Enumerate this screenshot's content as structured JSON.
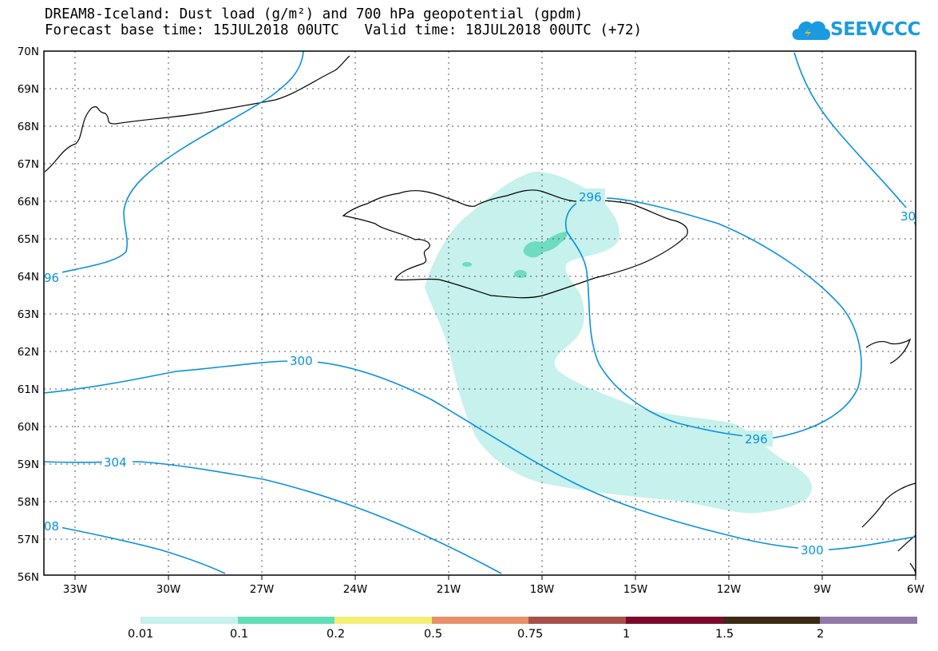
{
  "header": {
    "title_line1": "DREAM8-Iceland: Dust load (g/m²) and 700 hPa geopotential (gpdm)",
    "title_line2": "Forecast base time: 15JUL2018 00UTC   Valid time: 18JUL2018 00UTC (+72)"
  },
  "logo": {
    "text": "SEEVCCC",
    "icon": "cloud-icon",
    "color": "#1a9ae0"
  },
  "map": {
    "lon_ticks": [
      "33W",
      "30W",
      "27W",
      "24W",
      "21W",
      "18W",
      "15W",
      "12W",
      "9W",
      "6W"
    ],
    "lat_ticks": [
      "70N",
      "69N",
      "68N",
      "67N",
      "66N",
      "65N",
      "64N",
      "63N",
      "62N",
      "61N",
      "60N",
      "59N",
      "58N",
      "57N",
      "56N"
    ],
    "contour_color": "#0a90e0",
    "contour_labels": [
      "296",
      "96",
      "300",
      "304",
      "296",
      "300",
      "08",
      "30"
    ],
    "dust_colors": {
      "light": "#c6f1ec",
      "medium": "#6ddcc0"
    }
  },
  "colorbar": {
    "colors": [
      "#c6f1ec",
      "#5fdfb7",
      "#f4ee74",
      "#e89068",
      "#a65049",
      "#7b0b2d",
      "#3b2a14",
      "#9278a8"
    ],
    "labels": [
      "0.01",
      "0.1",
      "0.2",
      "0.5",
      "0.75",
      "1",
      "1.5",
      "2"
    ]
  }
}
